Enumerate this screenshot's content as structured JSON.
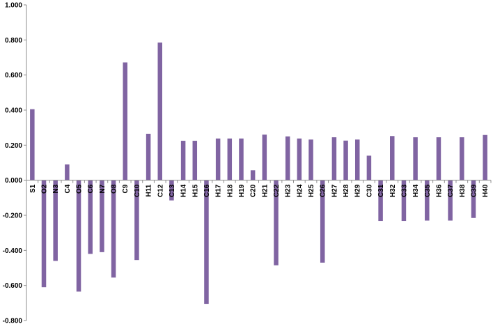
{
  "chart_data": {
    "type": "bar",
    "title": "",
    "xlabel": "",
    "ylabel": "",
    "ylim": [
      -0.8,
      1.0
    ],
    "yticks": [
      1.0,
      0.8,
      0.6,
      0.4,
      0.2,
      0.0,
      -0.2,
      -0.4,
      -0.6,
      -0.8
    ],
    "ytick_labels": [
      "1.000",
      "0.800",
      "0.600",
      "0.400",
      "0.200",
      "0.000",
      "-0.200",
      "-0.400",
      "-0.600",
      "-0.800"
    ],
    "grid": false,
    "legend": "none",
    "bar_color": "#8064a2",
    "categories": [
      "S1",
      "O2",
      "N3",
      "C4",
      "O5",
      "C6",
      "N7",
      "O8",
      "C9",
      "C10",
      "H11",
      "C12",
      "C13",
      "H14",
      "H15",
      "C16",
      "H17",
      "H18",
      "H19",
      "C20",
      "H21",
      "C22",
      "H23",
      "H24",
      "H25",
      "C26",
      "H27",
      "H28",
      "H29",
      "C30",
      "C31",
      "H32",
      "C33",
      "H34",
      "C35",
      "H36",
      "C37",
      "H38",
      "C39",
      "H40"
    ],
    "values": [
      0.405,
      -0.61,
      -0.46,
      0.09,
      -0.635,
      -0.42,
      -0.41,
      -0.555,
      0.672,
      -0.455,
      0.265,
      0.785,
      -0.115,
      0.225,
      0.225,
      -0.705,
      0.238,
      0.238,
      0.238,
      0.057,
      0.26,
      -0.485,
      0.25,
      0.238,
      0.232,
      -0.47,
      0.245,
      0.226,
      0.232,
      0.14,
      -0.232,
      0.252,
      -0.232,
      0.245,
      -0.23,
      0.245,
      -0.23,
      0.245,
      -0.215,
      0.258
    ]
  }
}
